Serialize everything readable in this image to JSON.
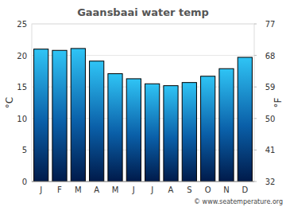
{
  "chart_data": {
    "type": "bar",
    "title": "Gaansbaai water temp",
    "categories": [
      "J",
      "F",
      "M",
      "A",
      "M",
      "J",
      "J",
      "A",
      "S",
      "O",
      "N",
      "D"
    ],
    "values": [
      21.0,
      20.8,
      21.1,
      19.1,
      17.1,
      16.3,
      15.5,
      15.2,
      15.7,
      16.7,
      17.9,
      19.7
    ],
    "color": "#2fc4f5",
    "ylim": [
      0,
      25
    ],
    "yticks": [
      0,
      5,
      10,
      15,
      20,
      25
    ],
    "y2lim": [
      32,
      77
    ],
    "y2ticks": [
      32,
      41,
      50,
      59,
      68,
      77
    ],
    "y_label": "°C",
    "y2_label": "°F",
    "grid": true,
    "source": "© www.seatemperature.org"
  }
}
